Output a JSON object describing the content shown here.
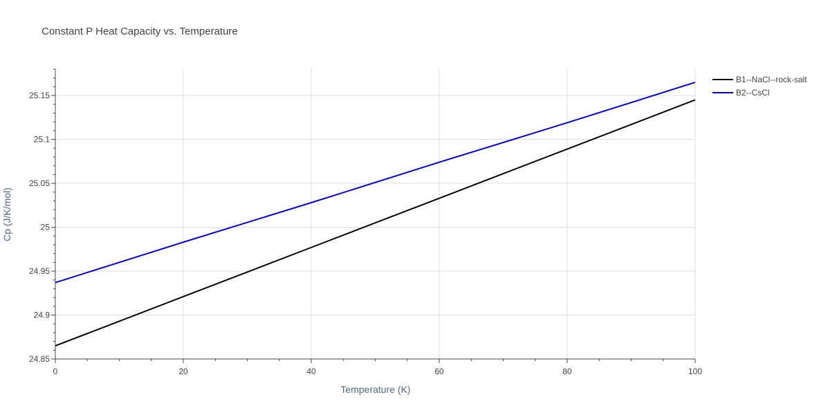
{
  "chart_data": {
    "type": "line",
    "title": "Constant P Heat Capacity vs. Temperature",
    "xlabel": "Temperature (K)",
    "ylabel": "Cp (J/K/mol)",
    "xlim": [
      0,
      100
    ],
    "ylim": [
      24.85,
      25.18
    ],
    "x_ticks": [
      0,
      20,
      40,
      60,
      80,
      100
    ],
    "x_tick_labels": [
      "0",
      "20",
      "40",
      "60",
      "80",
      "100"
    ],
    "y_ticks": [
      24.85,
      24.9,
      24.95,
      25,
      25.05,
      25.1,
      25.15
    ],
    "y_tick_labels": [
      "24.85",
      "24.9",
      "24.95",
      "25",
      "25.05",
      "25.1",
      "25.15"
    ],
    "grid": true,
    "legend_position": "top-right",
    "series": [
      {
        "name": "B1--NaCl--rock-salt",
        "color": "#000000",
        "x": [
          0,
          20,
          40,
          60,
          80,
          100
        ],
        "y": [
          24.865,
          24.921,
          24.977,
          25.033,
          25.089,
          25.145
        ]
      },
      {
        "name": "B2--CsCl",
        "color": "#0000ee",
        "x": [
          0,
          20,
          40,
          60,
          80,
          100
        ],
        "y": [
          24.937,
          24.983,
          25.028,
          25.074,
          25.119,
          25.165
        ]
      }
    ]
  }
}
